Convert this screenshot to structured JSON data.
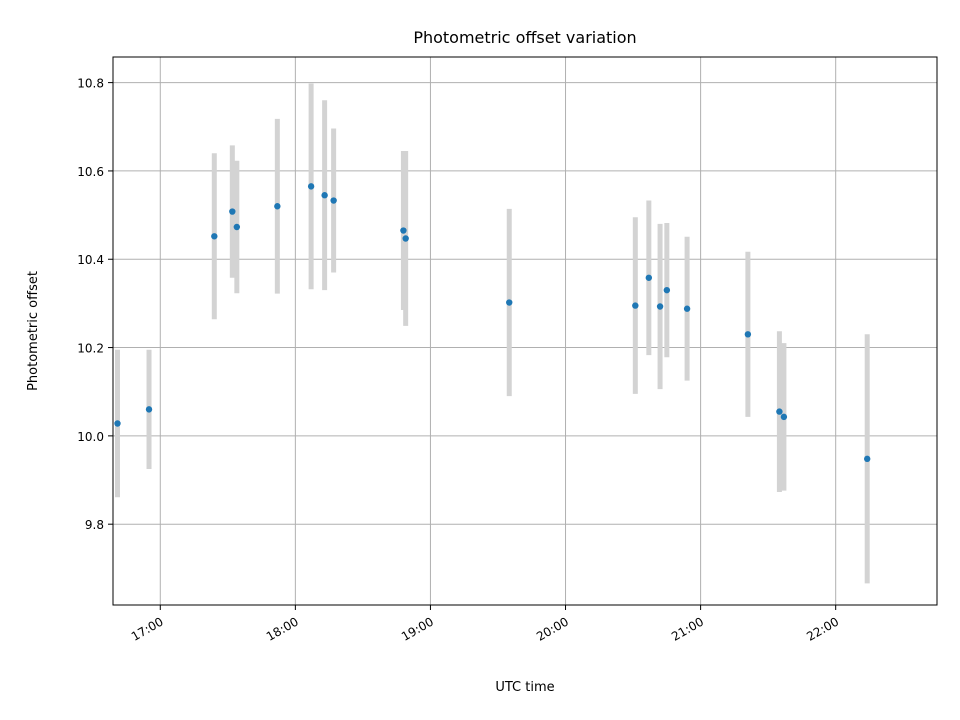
{
  "chart_data": {
    "type": "scatter",
    "title": "Photometric offset variation",
    "xlabel": "UTC time",
    "ylabel": "Photometric offset",
    "x_tick_labels": [
      "17:00",
      "18:00",
      "19:00",
      "20:00",
      "21:00",
      "22:00"
    ],
    "x_tick_times": [
      "17:00",
      "18:00",
      "19:00",
      "20:00",
      "21:00",
      "22:00"
    ],
    "y_ticks": [
      9.8,
      10.0,
      10.2,
      10.4,
      10.6,
      10.8
    ],
    "y_tick_labels": [
      "9.8",
      "10.0",
      "10.2",
      "10.4",
      "10.6",
      "10.8"
    ],
    "xlim": [
      "16:39",
      "22:45"
    ],
    "ylim": [
      9.617,
      10.858
    ],
    "grid": true,
    "marker_color": "#1f77b4",
    "errorbar_color": "#d3d3d3",
    "points": [
      {
        "t": "16:41",
        "y": 10.028,
        "err": 0.167
      },
      {
        "t": "16:55",
        "y": 10.06,
        "err": 0.135
      },
      {
        "t": "17:24",
        "y": 10.452,
        "err": 0.188
      },
      {
        "t": "17:32",
        "y": 10.508,
        "err": 0.15
      },
      {
        "t": "17:34",
        "y": 10.473,
        "err": 0.15
      },
      {
        "t": "17:52",
        "y": 10.52,
        "err": 0.198
      },
      {
        "t": "18:07",
        "y": 10.565,
        "err": 0.233
      },
      {
        "t": "18:13",
        "y": 10.545,
        "err": 0.215
      },
      {
        "t": "18:17",
        "y": 10.533,
        "err": 0.163
      },
      {
        "t": "18:48",
        "y": 10.465,
        "err": 0.18
      },
      {
        "t": "18:49",
        "y": 10.447,
        "err": 0.198
      },
      {
        "t": "19:35",
        "y": 10.302,
        "err": 0.212
      },
      {
        "t": "20:31",
        "y": 10.295,
        "err": 0.2
      },
      {
        "t": "20:37",
        "y": 10.358,
        "err": 0.175
      },
      {
        "t": "20:42",
        "y": 10.293,
        "err": 0.187
      },
      {
        "t": "20:45",
        "y": 10.33,
        "err": 0.152
      },
      {
        "t": "20:54",
        "y": 10.288,
        "err": 0.163
      },
      {
        "t": "21:21",
        "y": 10.23,
        "err": 0.187
      },
      {
        "t": "21:35",
        "y": 10.055,
        "err": 0.182
      },
      {
        "t": "21:37",
        "y": 10.043,
        "err": 0.167
      },
      {
        "t": "22:14",
        "y": 9.948,
        "err": 0.282
      }
    ]
  }
}
